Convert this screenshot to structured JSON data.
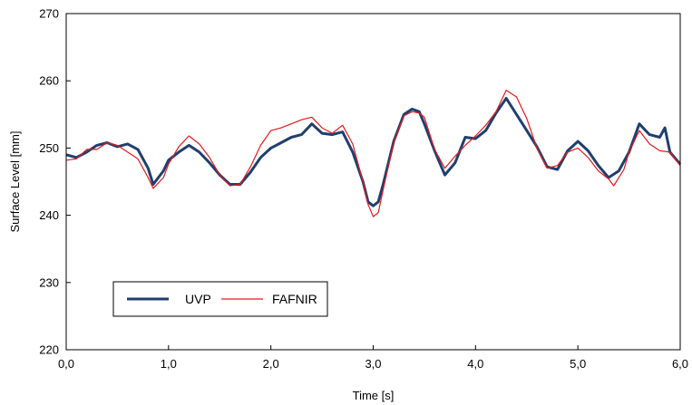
{
  "chart_data": {
    "type": "line",
    "xlabel": "Time [s]",
    "ylabel": "Surface Level [mm]",
    "xlim": [
      0,
      6
    ],
    "ylim": [
      220,
      270
    ],
    "x_ticks": [
      {
        "value": 0,
        "label": "0,0"
      },
      {
        "value": 1,
        "label": "1,0"
      },
      {
        "value": 2,
        "label": "2,0"
      },
      {
        "value": 3,
        "label": "3,0"
      },
      {
        "value": 4,
        "label": "4,0"
      },
      {
        "value": 5,
        "label": "5,0"
      },
      {
        "value": 6,
        "label": "6,0"
      }
    ],
    "y_ticks": [
      {
        "value": 220,
        "label": "220"
      },
      {
        "value": 230,
        "label": "230"
      },
      {
        "value": 240,
        "label": "240"
      },
      {
        "value": 250,
        "label": "250"
      },
      {
        "value": 260,
        "label": "260"
      },
      {
        "value": 270,
        "label": "270"
      }
    ],
    "grid": false,
    "legend_position": "bottom-left",
    "series": [
      {
        "name": "UVP",
        "color": "#1f3f6e",
        "points": [
          [
            0.0,
            249.0
          ],
          [
            0.1,
            248.6
          ],
          [
            0.2,
            249.4
          ],
          [
            0.3,
            250.4
          ],
          [
            0.4,
            250.8
          ],
          [
            0.5,
            250.2
          ],
          [
            0.6,
            250.6
          ],
          [
            0.7,
            249.8
          ],
          [
            0.8,
            247.0
          ],
          [
            0.85,
            244.6
          ],
          [
            0.95,
            246.6
          ],
          [
            1.0,
            248.2
          ],
          [
            1.1,
            249.4
          ],
          [
            1.2,
            250.4
          ],
          [
            1.3,
            249.4
          ],
          [
            1.4,
            247.8
          ],
          [
            1.5,
            246.0
          ],
          [
            1.6,
            244.6
          ],
          [
            1.7,
            244.6
          ],
          [
            1.8,
            246.4
          ],
          [
            1.9,
            248.6
          ],
          [
            2.0,
            250.0
          ],
          [
            2.1,
            250.8
          ],
          [
            2.2,
            251.6
          ],
          [
            2.3,
            252.0
          ],
          [
            2.4,
            253.6
          ],
          [
            2.5,
            252.2
          ],
          [
            2.6,
            252.0
          ],
          [
            2.7,
            252.4
          ],
          [
            2.8,
            249.4
          ],
          [
            2.9,
            245.0
          ],
          [
            2.95,
            242.0
          ],
          [
            3.0,
            241.4
          ],
          [
            3.05,
            242.0
          ],
          [
            3.1,
            244.8
          ],
          [
            3.2,
            251.0
          ],
          [
            3.3,
            255.0
          ],
          [
            3.38,
            255.8
          ],
          [
            3.45,
            255.4
          ],
          [
            3.5,
            253.6
          ],
          [
            3.6,
            249.6
          ],
          [
            3.7,
            246.0
          ],
          [
            3.8,
            247.8
          ],
          [
            3.9,
            251.6
          ],
          [
            4.0,
            251.4
          ],
          [
            4.1,
            252.6
          ],
          [
            4.2,
            255.2
          ],
          [
            4.3,
            257.4
          ],
          [
            4.4,
            255.0
          ],
          [
            4.5,
            252.6
          ],
          [
            4.6,
            250.2
          ],
          [
            4.7,
            247.2
          ],
          [
            4.8,
            246.8
          ],
          [
            4.9,
            249.6
          ],
          [
            5.0,
            251.0
          ],
          [
            5.1,
            249.6
          ],
          [
            5.2,
            247.4
          ],
          [
            5.3,
            245.6
          ],
          [
            5.4,
            246.6
          ],
          [
            5.5,
            249.4
          ],
          [
            5.6,
            253.6
          ],
          [
            5.7,
            252.0
          ],
          [
            5.8,
            251.6
          ],
          [
            5.85,
            253.0
          ],
          [
            5.9,
            249.4
          ],
          [
            6.0,
            247.6
          ]
        ]
      },
      {
        "name": "FAFNIR",
        "color": "#e31a1c",
        "points": [
          [
            0.0,
            248.2
          ],
          [
            0.1,
            248.4
          ],
          [
            0.2,
            249.8
          ],
          [
            0.3,
            249.8
          ],
          [
            0.4,
            250.8
          ],
          [
            0.5,
            250.4
          ],
          [
            0.6,
            249.4
          ],
          [
            0.7,
            248.4
          ],
          [
            0.8,
            245.6
          ],
          [
            0.85,
            244.0
          ],
          [
            0.95,
            245.6
          ],
          [
            1.0,
            247.6
          ],
          [
            1.1,
            250.2
          ],
          [
            1.2,
            251.8
          ],
          [
            1.3,
            250.6
          ],
          [
            1.4,
            248.6
          ],
          [
            1.5,
            246.0
          ],
          [
            1.6,
            244.4
          ],
          [
            1.7,
            244.6
          ],
          [
            1.8,
            247.2
          ],
          [
            1.9,
            250.4
          ],
          [
            2.0,
            252.6
          ],
          [
            2.1,
            253.0
          ],
          [
            2.2,
            253.6
          ],
          [
            2.3,
            254.2
          ],
          [
            2.4,
            254.6
          ],
          [
            2.5,
            253.0
          ],
          [
            2.6,
            252.2
          ],
          [
            2.7,
            253.4
          ],
          [
            2.8,
            250.6
          ],
          [
            2.9,
            245.0
          ],
          [
            2.95,
            241.6
          ],
          [
            3.0,
            239.8
          ],
          [
            3.05,
            240.4
          ],
          [
            3.1,
            244.0
          ],
          [
            3.2,
            250.8
          ],
          [
            3.3,
            254.8
          ],
          [
            3.38,
            255.4
          ],
          [
            3.45,
            255.2
          ],
          [
            3.5,
            254.6
          ],
          [
            3.6,
            249.8
          ],
          [
            3.7,
            247.0
          ],
          [
            3.8,
            248.8
          ],
          [
            3.9,
            250.4
          ],
          [
            4.0,
            251.8
          ],
          [
            4.1,
            253.4
          ],
          [
            4.2,
            255.4
          ],
          [
            4.3,
            258.6
          ],
          [
            4.4,
            257.6
          ],
          [
            4.5,
            254.4
          ],
          [
            4.6,
            250.0
          ],
          [
            4.7,
            247.0
          ],
          [
            4.8,
            247.4
          ],
          [
            4.9,
            249.4
          ],
          [
            5.0,
            250.0
          ],
          [
            5.1,
            248.6
          ],
          [
            5.2,
            246.6
          ],
          [
            5.3,
            245.4
          ],
          [
            5.35,
            244.4
          ],
          [
            5.45,
            246.8
          ],
          [
            5.5,
            249.4
          ],
          [
            5.6,
            252.6
          ],
          [
            5.7,
            250.6
          ],
          [
            5.8,
            249.6
          ],
          [
            5.9,
            249.4
          ],
          [
            6.0,
            247.4
          ]
        ]
      }
    ]
  }
}
